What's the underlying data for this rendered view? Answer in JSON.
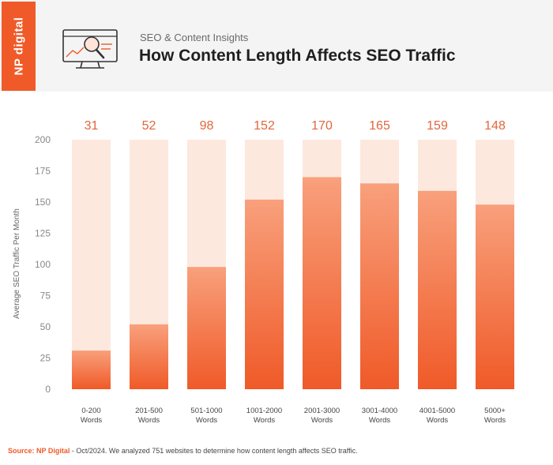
{
  "header": {
    "logo_text": "NP digital",
    "subtitle": "SEO & Content Insights",
    "title": "How Content Length Affects SEO Traffic",
    "icon": "monitor-magnifier-icon"
  },
  "colors": {
    "accent": "#f05a28",
    "bar_top": "#f8a07c",
    "bar_bottom": "#f05a28",
    "bar_background": "#fde8de",
    "value_label": "#e2663a"
  },
  "chart_data": {
    "type": "bar",
    "ylabel": "Average SEO Traffic Per Month",
    "xlabel": "",
    "ylim": [
      0,
      200
    ],
    "yticks": [
      0,
      25,
      50,
      75,
      100,
      125,
      150,
      175,
      200
    ],
    "categories": [
      [
        "0-200",
        "Words"
      ],
      [
        "201-500",
        "Words"
      ],
      [
        "501-1000",
        "Words"
      ],
      [
        "1001-2000",
        "Words"
      ],
      [
        "2001-3000",
        "Words"
      ],
      [
        "3001-4000",
        "Words"
      ],
      [
        "4001-5000",
        "Words"
      ],
      [
        "5000+",
        "Words"
      ]
    ],
    "values": [
      31,
      52,
      98,
      152,
      170,
      165,
      159,
      148
    ],
    "grid": false,
    "legend": "none"
  },
  "footer": {
    "source_label": "Source:",
    "source_org": "NP Digital",
    "source_text": " - Oct/2024. We analyzed 751 websites to determine how content length affects SEO traffic."
  }
}
